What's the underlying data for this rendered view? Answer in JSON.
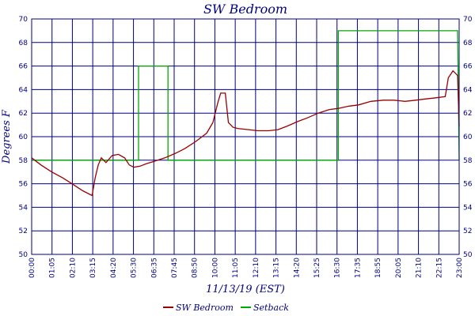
{
  "chart_data": {
    "type": "line",
    "title": "SW Bedroom",
    "ylabel": "Degrees F",
    "xlabel": "11/13/19 (EST)",
    "ylim": [
      50,
      70
    ],
    "y_ticks": [
      "50",
      "52",
      "54",
      "56",
      "58",
      "60",
      "62",
      "64",
      "66",
      "68",
      "70"
    ],
    "x_ticks": [
      "00:00",
      "01:05",
      "02:10",
      "03:15",
      "04:20",
      "05:30",
      "06:35",
      "07:45",
      "08:50",
      "10:00",
      "11:05",
      "12:10",
      "13:15",
      "14:20",
      "15:25",
      "16:30",
      "17:35",
      "18:55",
      "20:05",
      "21:10",
      "22:15",
      "23:00"
    ],
    "grid": true,
    "legend_position": "bottom",
    "series": [
      {
        "name": "SW Bedroom",
        "color": "#990000",
        "points": [
          [
            "00:00",
            58.2
          ],
          [
            "00:30",
            57.6
          ],
          [
            "01:05",
            57.0
          ],
          [
            "01:40",
            56.5
          ],
          [
            "02:10",
            56.0
          ],
          [
            "02:45",
            55.4
          ],
          [
            "03:15",
            55.0
          ],
          [
            "03:25",
            56.5
          ],
          [
            "03:35",
            57.6
          ],
          [
            "03:45",
            58.2
          ],
          [
            "04:00",
            57.8
          ],
          [
            "04:20",
            58.4
          ],
          [
            "04:40",
            58.5
          ],
          [
            "05:00",
            58.2
          ],
          [
            "05:15",
            57.6
          ],
          [
            "05:30",
            57.4
          ],
          [
            "05:50",
            57.5
          ],
          [
            "06:10",
            57.7
          ],
          [
            "06:35",
            57.9
          ],
          [
            "07:10",
            58.2
          ],
          [
            "07:45",
            58.6
          ],
          [
            "08:15",
            59.0
          ],
          [
            "08:50",
            59.6
          ],
          [
            "09:25",
            60.3
          ],
          [
            "09:45",
            61.2
          ],
          [
            "10:00",
            62.8
          ],
          [
            "10:10",
            63.7
          ],
          [
            "10:25",
            63.7
          ],
          [
            "10:35",
            61.2
          ],
          [
            "10:50",
            60.8
          ],
          [
            "11:05",
            60.7
          ],
          [
            "11:40",
            60.6
          ],
          [
            "12:10",
            60.5
          ],
          [
            "12:45",
            60.5
          ],
          [
            "13:15",
            60.6
          ],
          [
            "13:45",
            60.9
          ],
          [
            "14:20",
            61.3
          ],
          [
            "14:50",
            61.6
          ],
          [
            "15:25",
            62.0
          ],
          [
            "16:00",
            62.3
          ],
          [
            "16:30",
            62.4
          ],
          [
            "17:05",
            62.6
          ],
          [
            "17:35",
            62.7
          ],
          [
            "18:15",
            63.0
          ],
          [
            "18:55",
            63.1
          ],
          [
            "19:30",
            63.1
          ],
          [
            "20:05",
            63.0
          ],
          [
            "20:40",
            63.1
          ],
          [
            "21:10",
            63.2
          ],
          [
            "21:45",
            63.3
          ],
          [
            "22:15",
            63.4
          ],
          [
            "22:25",
            65.0
          ],
          [
            "22:40",
            65.6
          ],
          [
            "22:55",
            65.2
          ],
          [
            "23:00",
            60.9
          ]
        ]
      },
      {
        "name": "Setback",
        "color": "#00aa00",
        "points": [
          [
            "00:00",
            58.0
          ],
          [
            "05:45",
            58.0
          ],
          [
            "05:45",
            66.0
          ],
          [
            "07:20",
            66.0
          ],
          [
            "07:20",
            58.0
          ],
          [
            "16:30",
            58.0
          ],
          [
            "16:30",
            69.0
          ],
          [
            "22:55",
            69.0
          ],
          [
            "23:00",
            58.0
          ]
        ]
      }
    ]
  }
}
